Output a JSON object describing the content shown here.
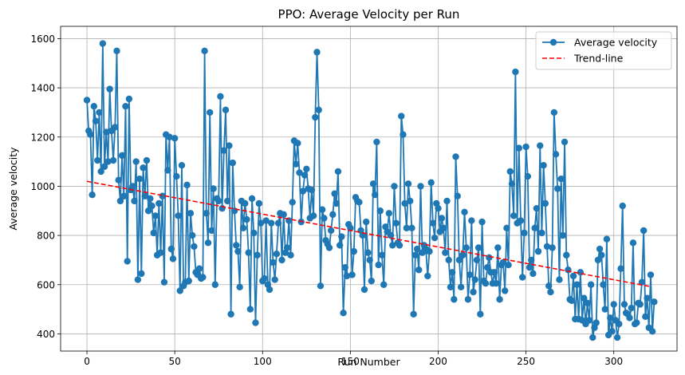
{
  "chart_data": {
    "type": "line",
    "title": "PPO: Average Velocity per Run",
    "xlabel": "Run Number",
    "ylabel": "Average velocity",
    "xlim": [
      -15,
      336
    ],
    "ylim": [
      330,
      1650
    ],
    "x_ticks": [
      0,
      50,
      100,
      150,
      200,
      250,
      300
    ],
    "y_ticks": [
      400,
      600,
      800,
      1000,
      1200,
      1400,
      1600
    ],
    "grid": true,
    "legend_position": "top-right",
    "series": [
      {
        "name": "Average velocity",
        "style": "line-with-markers",
        "color": "#1f77b4",
        "x_start": 0,
        "values": [
          1350,
          1225,
          1210,
          965,
          1325,
          1265,
          1105,
          1300,
          1060,
          1580,
          1080,
          1220,
          1100,
          1395,
          1225,
          1105,
          1240,
          1550,
          1025,
          940,
          1125,
          960,
          1325,
          695,
          1355,
          985,
          1000,
          940,
          1100,
          620,
          1030,
          645,
          1075,
          960,
          1105,
          900,
          950,
          920,
          810,
          880,
          720,
          930,
          730,
          960,
          610,
          1210,
          1065,
          1200,
          745,
          705,
          1195,
          1040,
          880,
          575,
          1085,
          595,
          610,
          1005,
          615,
          890,
          800,
          755,
          650,
          640,
          665,
          625,
          630,
          1550,
          890,
          770,
          1300,
          820,
          990,
          600,
          950,
          940,
          1365,
          910,
          1145,
          1310,
          940,
          1165,
          480,
          1095,
          900,
          760,
          735,
          590,
          940,
          830,
          930,
          865,
          730,
          500,
          950,
          810,
          445,
          720,
          930,
          850,
          615,
          625,
          860,
          600,
          580,
          850,
          690,
          620,
          725,
          850,
          890,
          700,
          885,
          730,
          750,
          860,
          720,
          935,
          1185,
          1090,
          1175,
          1055,
          855,
          980,
          1045,
          1070,
          990,
          870,
          985,
          880,
          1280,
          1545,
          1310,
          595,
          905,
          870,
          780,
          765,
          750,
          820,
          885,
          970,
          930,
          1060,
          760,
          795,
          485,
          670,
          635,
          845,
          830,
          640,
          735,
          955,
          940,
          935,
          820,
          800,
          580,
          855,
          730,
          700,
          615,
          1010,
          965,
          1180,
          680,
          900,
          720,
          600,
          835,
          815,
          890,
          800,
          760,
          1000,
          850,
          770,
          760,
          1285,
          1210,
          930,
          830,
          1010,
          940,
          830,
          480,
          720,
          745,
          660,
          1000,
          730,
          760,
          745,
          635,
          735,
          1015,
          850,
          790,
          930,
          910,
          815,
          870,
          830,
          730,
          940,
          700,
          590,
          650,
          540,
          1120,
          960,
          700,
          590,
          720,
          895,
          750,
          540,
          640,
          860,
          570,
          620,
          700,
          750,
          480,
          855,
          615,
          605,
          670,
          710,
          650,
          605,
          650,
          605,
          750,
          540,
          680,
          690,
          575,
          830,
          680,
          1060,
          1010,
          880,
          1465,
          850,
          1155,
          860,
          630,
          810,
          1160,
          1040,
          670,
          700,
          645,
          830,
          910,
          735,
          1165,
          810,
          1085,
          930,
          755,
          595,
          570,
          750,
          1300,
          1130,
          990,
          620,
          1030,
          800,
          1180,
          720,
          660,
          540,
          535,
          635,
          460,
          600,
          460,
          650,
          455,
          545,
          440,
          525,
          455,
          600,
          385,
          425,
          445,
          700,
          745,
          720,
          600,
          500,
          785,
          395,
          465,
          410,
          520,
          455,
          385,
          440,
          665,
          920,
          520,
          485,
          480,
          465,
          505,
          770,
          440,
          445,
          525,
          520,
          610,
          820,
          470,
          545,
          425,
          640,
          410,
          530
        ]
      },
      {
        "name": "Trend-line",
        "style": "dashed",
        "color": "#ff0000",
        "x": [
          0,
          321
        ],
        "y": [
          1020,
          592
        ]
      }
    ]
  }
}
